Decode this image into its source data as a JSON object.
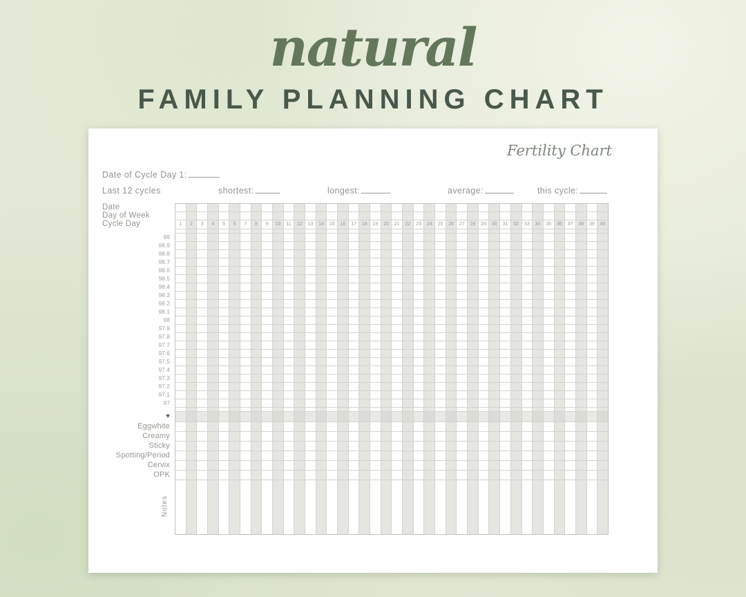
{
  "header": {
    "script_title": "natural",
    "main_title": "FAMILY PLANNING CHART"
  },
  "sheet": {
    "brand": "Fertility Chart",
    "fields": {
      "date_label": "Date of Cycle Day 1:",
      "last_12_cycles": "Last 12 cycles",
      "shortest": "shortest:",
      "longest": "longest:",
      "average": "average:",
      "this_cycle": "this cycle:"
    },
    "grid": {
      "header_rows": [
        "Date",
        "Day of Week",
        "Cycle Day"
      ],
      "cycle_days": [
        1,
        2,
        3,
        4,
        5,
        6,
        7,
        8,
        9,
        10,
        11,
        12,
        13,
        14,
        15,
        16,
        17,
        18,
        19,
        20,
        21,
        22,
        23,
        24,
        25,
        26,
        27,
        28,
        29,
        30,
        31,
        32,
        33,
        34,
        35,
        36,
        37,
        38,
        39,
        40
      ],
      "temperatures": [
        "99",
        "98.9",
        "98.8",
        "98.7",
        "98.6",
        "98.5",
        "98.4",
        "98.3",
        "98.2",
        "98.1",
        "98",
        "97.9",
        "97.8",
        "97.7",
        "97.6",
        "97.5",
        "97.4",
        "97.3",
        "97.2",
        "97.1",
        "97"
      ],
      "heart_icon": "♥",
      "symptoms": [
        "Eggwhite",
        "Creamy",
        "Sticky",
        "Spotting/Period",
        "Cervix",
        "OPK"
      ],
      "notes_label": "Notes"
    },
    "colors": {
      "background": "#e3e8d6",
      "script_title": "#64775a",
      "main_title": "#49584a",
      "sheet_bg": "#ffffff",
      "grid_line": "#d4d4d1",
      "stripe": "#e5e5e2",
      "label_text": "#94968e",
      "heart": "#5d6d55"
    }
  }
}
